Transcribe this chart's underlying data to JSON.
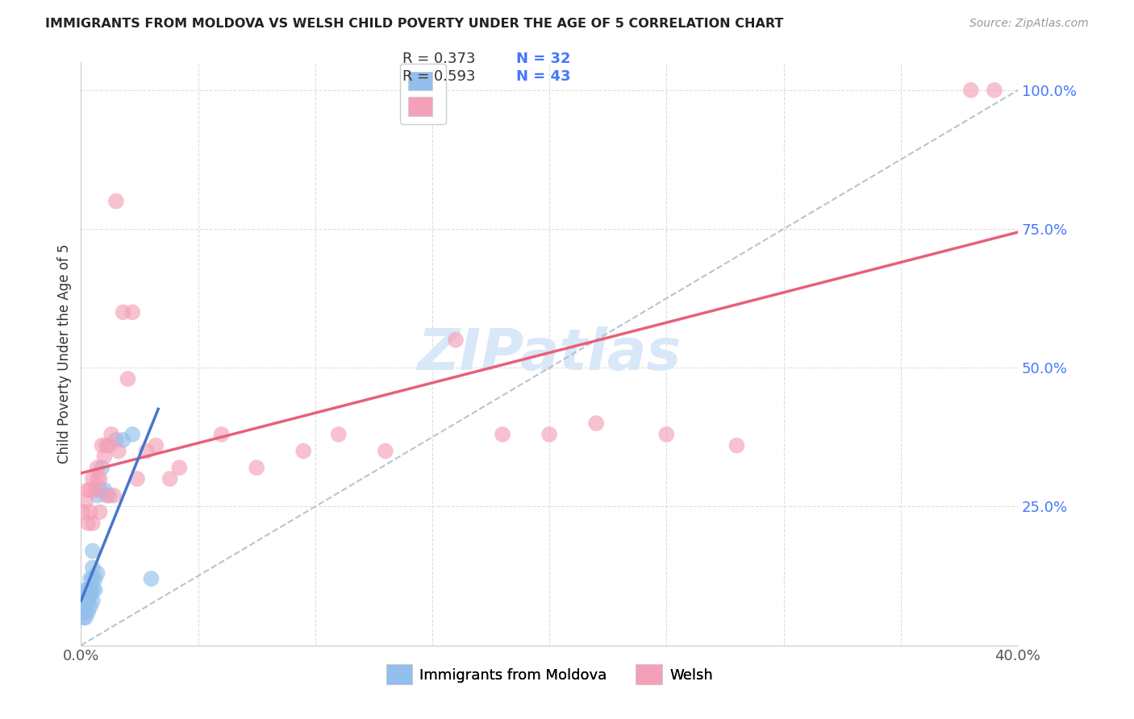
{
  "title": "IMMIGRANTS FROM MOLDOVA VS WELSH CHILD POVERTY UNDER THE AGE OF 5 CORRELATION CHART",
  "source": "Source: ZipAtlas.com",
  "ylabel": "Child Poverty Under the Age of 5",
  "xlim": [
    0.0,
    0.4
  ],
  "ylim": [
    0.0,
    1.05
  ],
  "yticks": [
    0.0,
    0.25,
    0.5,
    0.75,
    1.0
  ],
  "ytick_labels": [
    "",
    "25.0%",
    "50.0%",
    "75.0%",
    "100.0%"
  ],
  "xtick_labels": [
    "0.0%",
    "",
    "",
    "",
    "",
    "",
    "",
    "",
    "40.0%"
  ],
  "legend_r_blue": "R = 0.373",
  "legend_n_blue": "N = 32",
  "legend_r_pink": "R = 0.593",
  "legend_n_pink": "N = 43",
  "legend_label_blue": "Immigrants from Moldova",
  "legend_label_pink": "Welsh",
  "blue_color": "#92BFEB",
  "pink_color": "#F4A0B8",
  "blue_line_color": "#4477CC",
  "pink_line_color": "#E8607A",
  "text_blue_color": "#4477FF",
  "grid_color": "#DDDDDD",
  "background_color": "#FFFFFF",
  "blue_x": [
    0.001,
    0.001,
    0.001,
    0.002,
    0.002,
    0.002,
    0.002,
    0.003,
    0.003,
    0.003,
    0.003,
    0.004,
    0.004,
    0.004,
    0.004,
    0.005,
    0.005,
    0.005,
    0.005,
    0.005,
    0.006,
    0.006,
    0.007,
    0.007,
    0.008,
    0.009,
    0.01,
    0.012,
    0.015,
    0.018,
    0.022,
    0.03
  ],
  "blue_y": [
    0.05,
    0.06,
    0.07,
    0.05,
    0.06,
    0.08,
    0.1,
    0.06,
    0.08,
    0.09,
    0.1,
    0.07,
    0.09,
    0.1,
    0.12,
    0.08,
    0.1,
    0.12,
    0.14,
    0.17,
    0.1,
    0.12,
    0.13,
    0.27,
    0.28,
    0.32,
    0.28,
    0.27,
    0.37,
    0.37,
    0.38,
    0.12
  ],
  "pink_x": [
    0.001,
    0.002,
    0.003,
    0.003,
    0.004,
    0.004,
    0.005,
    0.005,
    0.006,
    0.007,
    0.007,
    0.008,
    0.008,
    0.009,
    0.01,
    0.011,
    0.011,
    0.012,
    0.013,
    0.014,
    0.015,
    0.016,
    0.018,
    0.02,
    0.022,
    0.024,
    0.028,
    0.032,
    0.038,
    0.042,
    0.06,
    0.075,
    0.095,
    0.11,
    0.13,
    0.16,
    0.18,
    0.2,
    0.22,
    0.25,
    0.28,
    0.38,
    0.39
  ],
  "pink_y": [
    0.24,
    0.26,
    0.22,
    0.28,
    0.24,
    0.28,
    0.22,
    0.3,
    0.28,
    0.3,
    0.32,
    0.24,
    0.3,
    0.36,
    0.34,
    0.27,
    0.36,
    0.36,
    0.38,
    0.27,
    0.8,
    0.35,
    0.6,
    0.48,
    0.6,
    0.3,
    0.35,
    0.36,
    0.3,
    0.32,
    0.38,
    0.32,
    0.35,
    0.38,
    0.35,
    0.55,
    0.38,
    0.38,
    0.4,
    0.38,
    0.36,
    1.0,
    1.0
  ],
  "ref_line_color": "#AABBCC",
  "watermark_color": "#D8E8F8"
}
